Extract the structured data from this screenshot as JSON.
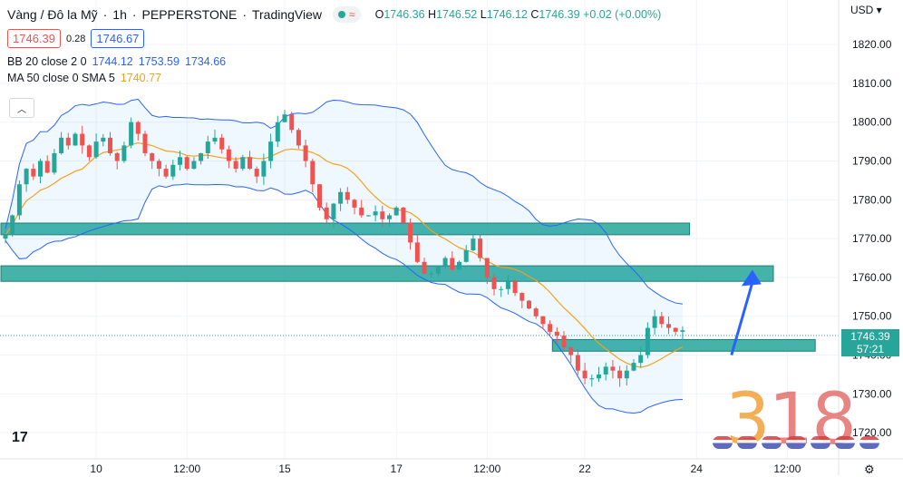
{
  "header": {
    "symbol": "Vàng / Đô la Mỹ",
    "sep1": "·",
    "interval": "1h",
    "sep2": "·",
    "broker": "PEPPERSTONE",
    "sep3": "·",
    "platform": "TradingView",
    "ohlc": {
      "o_label": "O",
      "o": "1746.36",
      "h_label": "H",
      "h": "1746.52",
      "l_label": "L",
      "l": "1746.12",
      "c_label": "C",
      "c": "1746.39",
      "change": "+0.02 (+0.00%)"
    },
    "sell_price": "1746.39",
    "spread": "0.28",
    "buy_price": "1746.67"
  },
  "indicators": {
    "bb": {
      "name": "BB 20 close 2 0",
      "basis": "1744.12",
      "upper": "1753.59",
      "lower": "1734.66"
    },
    "ma": {
      "name": "MA 50 close 0 SMA 5",
      "value": "1740.77"
    }
  },
  "axis": {
    "currency": "USD",
    "price_ticks": [
      "1820.00",
      "1810.00",
      "1800.00",
      "1790.00",
      "1780.00",
      "1770.00",
      "1760.00",
      "1750.00",
      "1740.00",
      "1730.00",
      "1720.00"
    ],
    "time_ticks": [
      "10",
      "12:00",
      "15",
      "17",
      "12:00",
      "22",
      "24",
      "12:00"
    ]
  },
  "current_price": {
    "value": "1746.39",
    "countdown": "57:21"
  },
  "watermark": {
    "text_a": "3",
    "text_b": "18"
  },
  "colors": {
    "up": "#26a69a",
    "down": "#ef5350",
    "bb": "#2962ff",
    "ma": "#f6a01a",
    "zone": "#26a69a",
    "arrow": "#2962ff"
  },
  "chart_data": {
    "type": "candlestick",
    "ylim": [
      1717,
      1824
    ],
    "y_ticks": [
      1720,
      1730,
      1740,
      1750,
      1760,
      1770,
      1780,
      1790,
      1800,
      1810,
      1820
    ],
    "x_ticks": [
      {
        "label": "10",
        "i": 13
      },
      {
        "label": "12:00",
        "i": 26
      },
      {
        "label": "15",
        "i": 40
      },
      {
        "label": "17",
        "i": 56
      },
      {
        "label": "12:00",
        "i": 69
      },
      {
        "label": "22",
        "i": 83
      },
      {
        "label": "24",
        "i": 99
      },
      {
        "label": "12:00",
        "i": 112
      }
    ],
    "close_path": [
      1771,
      1776,
      1784,
      1788,
      1786,
      1790,
      1787,
      1792,
      1796,
      1794,
      1797,
      1794,
      1791,
      1795,
      1796,
      1792,
      1790,
      1794,
      1800,
      1797,
      1792,
      1790,
      1788,
      1786,
      1789,
      1791,
      1788,
      1790,
      1792,
      1795,
      1796,
      1793,
      1790,
      1788,
      1791,
      1788,
      1786,
      1790,
      1795,
      1800,
      1802,
      1798,
      1794,
      1790,
      1784,
      1778,
      1775,
      1779,
      1782,
      1780,
      1778,
      1776,
      1776,
      1777,
      1775,
      1776,
      1778,
      1774,
      1769,
      1764,
      1761,
      1761,
      1763,
      1765,
      1762,
      1764,
      1767,
      1770,
      1765,
      1760,
      1757,
      1757,
      1759,
      1756,
      1754,
      1752,
      1750,
      1748,
      1746,
      1745,
      1742,
      1740,
      1736,
      1734,
      1734,
      1735,
      1737,
      1736,
      1734,
      1736,
      1738,
      1740,
      1747,
      1750,
      1748,
      1747,
      1746,
      1746.39
    ],
    "zones": [
      {
        "from_i": 0,
        "to_i": 98,
        "low": 1771,
        "high": 1774
      },
      {
        "from_i": 0,
        "to_i": 110,
        "low": 1759,
        "high": 1763
      },
      {
        "from_i": 79,
        "to_i": 116,
        "low": 1741,
        "high": 1744
      }
    ],
    "arrow": {
      "from_i": 104,
      "from_p": 1740,
      "to_i": 107,
      "to_p": 1762
    },
    "current_price": 1746.39
  }
}
